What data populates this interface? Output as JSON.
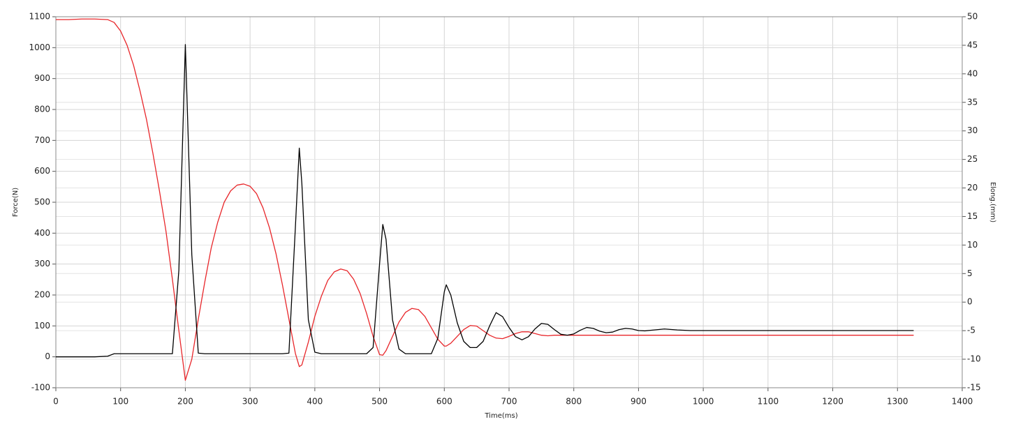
{
  "chart_data": {
    "type": "line",
    "x_label": "Time(ms)",
    "y_label": "Force(N)",
    "y2_label": "Elong.(mm)",
    "xlim": [
      0,
      1400
    ],
    "xticks": [
      0,
      100,
      200,
      300,
      400,
      500,
      600,
      700,
      800,
      900,
      1000,
      1100,
      1200,
      1300,
      1400
    ],
    "ylim": [
      -100,
      1100
    ],
    "yticks": [
      -100,
      0,
      100,
      200,
      300,
      400,
      500,
      600,
      700,
      800,
      900,
      1000,
      1100
    ],
    "y2lim": [
      -15,
      50
    ],
    "y2ticks": [
      -15,
      -10,
      -5,
      0,
      5,
      10,
      15,
      20,
      25,
      30,
      35,
      40,
      45,
      50
    ],
    "grid": true,
    "x": [
      0,
      20,
      40,
      60,
      80,
      90,
      100,
      110,
      120,
      130,
      140,
      150,
      160,
      170,
      180,
      190,
      200,
      210,
      220,
      230,
      240,
      250,
      260,
      270,
      280,
      290,
      300,
      310,
      320,
      330,
      340,
      350,
      360,
      370,
      376,
      380,
      390,
      400,
      410,
      420,
      430,
      440,
      450,
      460,
      470,
      480,
      490,
      500,
      505,
      510,
      520,
      530,
      540,
      550,
      560,
      570,
      580,
      590,
      600,
      603,
      610,
      620,
      630,
      640,
      650,
      660,
      670,
      680,
      690,
      700,
      710,
      720,
      730,
      740,
      750,
      760,
      770,
      780,
      790,
      800,
      810,
      820,
      830,
      840,
      850,
      860,
      870,
      880,
      890,
      900,
      910,
      920,
      940,
      960,
      980,
      1000,
      1100,
      1200,
      1325
    ],
    "series": [
      {
        "color": "#000000",
        "axis": "y",
        "values": [
          0,
          0,
          0,
          0,
          2,
          10,
          10,
          10,
          10,
          10,
          10,
          10,
          10,
          10,
          10,
          280,
          1010,
          330,
          12,
          10,
          10,
          10,
          10,
          10,
          10,
          10,
          10,
          10,
          10,
          10,
          10,
          10,
          12,
          420,
          675,
          560,
          120,
          15,
          10,
          10,
          10,
          10,
          10,
          10,
          10,
          10,
          30,
          300,
          428,
          380,
          120,
          25,
          10,
          10,
          10,
          10,
          10,
          60,
          210,
          233,
          200,
          110,
          50,
          30,
          30,
          50,
          100,
          143,
          130,
          95,
          65,
          55,
          65,
          90,
          108,
          105,
          88,
          73,
          70,
          74,
          86,
          95,
          92,
          83,
          78,
          80,
          88,
          92,
          90,
          85,
          84,
          86,
          90,
          87,
          85,
          85,
          85,
          85,
          85
        ]
      },
      {
        "color": "#e8262a",
        "axis": "y2",
        "values": [
          49.5,
          49.5,
          49.6,
          49.6,
          49.5,
          49,
          47.5,
          45,
          41.5,
          37,
          32,
          26,
          19.5,
          12.5,
          4,
          -5,
          -13.7,
          -10,
          -3,
          3.5,
          9.5,
          14,
          17.5,
          19.5,
          20.5,
          20.7,
          20.3,
          19,
          16.5,
          13,
          8.5,
          3,
          -3,
          -9,
          -11.3,
          -11,
          -7,
          -2.5,
          1,
          3.8,
          5.3,
          5.8,
          5.5,
          4,
          1.5,
          -2,
          -6,
          -9.2,
          -9.3,
          -8.5,
          -6,
          -3.5,
          -1.8,
          -1.1,
          -1.3,
          -2.5,
          -4.5,
          -6.5,
          -7.7,
          -7.7,
          -7.2,
          -6,
          -4.8,
          -4.1,
          -4.2,
          -5,
          -5.8,
          -6.3,
          -6.4,
          -6,
          -5.5,
          -5.2,
          -5.2,
          -5.5,
          -5.8,
          -5.9,
          -5.8,
          -5.8,
          -5.8,
          -5.8,
          -5.8,
          -5.8,
          -5.8,
          -5.8,
          -5.8,
          -5.8,
          -5.8,
          -5.8,
          -5.8,
          -5.8,
          -5.8,
          -5.8,
          -5.8,
          -5.8,
          -5.8,
          -5.8,
          -5.8,
          -5.8,
          -5.8
        ]
      }
    ]
  }
}
